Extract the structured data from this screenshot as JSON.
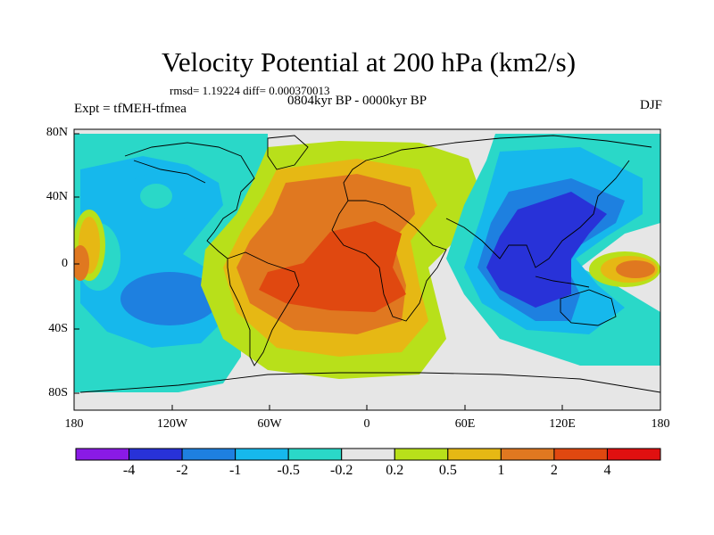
{
  "title": "Velocity Potential at 200 hPa (km2/s)",
  "stats": "rmsd= 1.19224  diff= 0.000370013",
  "period": "0804kyr BP - 0000kyr BP",
  "experiment": "Expt = tfMEH-tfmea",
  "season": "DJF",
  "lat_labels": [
    "80N",
    "40N",
    "0",
    "40S",
    "80S"
  ],
  "lon_labels": [
    "180",
    "120W",
    "60W",
    "0",
    "60E",
    "120E",
    "180"
  ],
  "colorbar": {
    "colors": [
      "#8a1ae6",
      "#2832d8",
      "#1e80e0",
      "#16b8ec",
      "#2ad8c8",
      "#e6e6e6",
      "#b8e01a",
      "#e6b814",
      "#e07820",
      "#e04810",
      "#e01010"
    ],
    "labels": [
      "-4",
      "-2",
      "-1",
      "-0.5",
      "-0.2",
      "0.2",
      "0.5",
      "1",
      "2",
      "4"
    ]
  }
}
